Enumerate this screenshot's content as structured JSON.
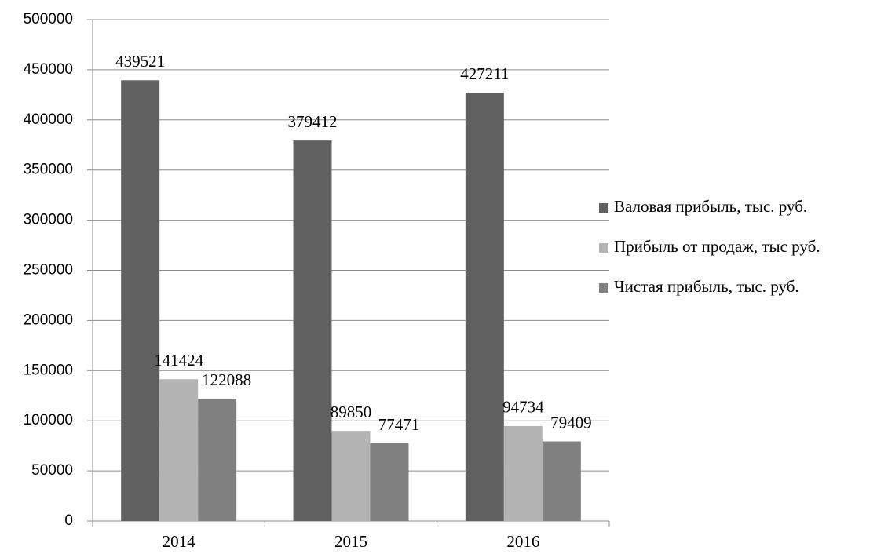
{
  "chart_data": {
    "type": "bar",
    "categories": [
      "2014",
      "2015",
      "2016"
    ],
    "series": [
      {
        "name": "Валовая прибыль, тыс. руб.",
        "color": "#606060",
        "values": [
          439521,
          379412,
          427211
        ]
      },
      {
        "name": "Прибыль от продаж, тыс руб.",
        "color": "#b3b3b3",
        "values": [
          141424,
          89850,
          94734
        ]
      },
      {
        "name": "Чистая прибыль, тыс. руб.",
        "color": "#808080",
        "values": [
          122088,
          77471,
          79409
        ]
      }
    ],
    "ylim": [
      0,
      500000
    ],
    "yticks": [
      0,
      50000,
      100000,
      150000,
      200000,
      250000,
      300000,
      350000,
      400000,
      450000,
      500000
    ],
    "grid": true,
    "legend": "right"
  }
}
